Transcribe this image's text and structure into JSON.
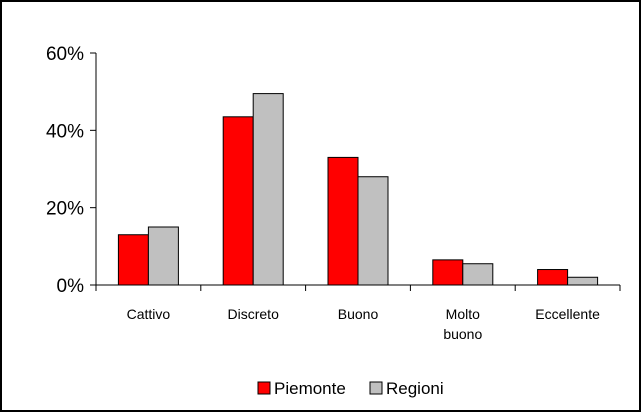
{
  "chart_data": {
    "type": "bar",
    "title": "",
    "xlabel": "",
    "ylabel": "",
    "categories": [
      [
        "Cattivo"
      ],
      [
        "Discreto"
      ],
      [
        "Buono"
      ],
      [
        "Molto",
        "buono"
      ],
      [
        "Eccellente"
      ]
    ],
    "series": [
      {
        "name": "Piemonte",
        "color": "#ff0000",
        "values": [
          13,
          43.5,
          33,
          6.5,
          4
        ]
      },
      {
        "name": "Regioni",
        "color": "#c0c0c0",
        "values": [
          15,
          49.5,
          28,
          5.5,
          2
        ]
      }
    ],
    "ylim": [
      0,
      60
    ],
    "yticks": [
      0,
      20,
      40,
      60
    ],
    "ytick_labels": [
      "0%",
      "20%",
      "40%",
      "60%"
    ],
    "grid": false,
    "legend_position": "bottom-center"
  }
}
